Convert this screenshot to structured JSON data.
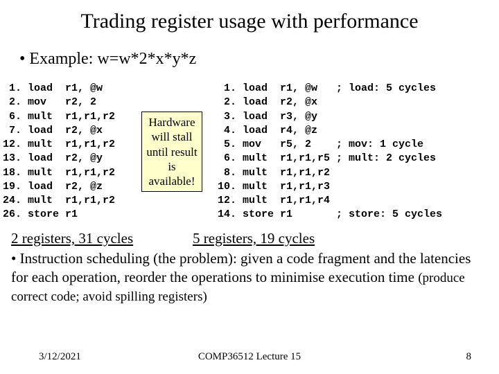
{
  "title": "Trading register usage with performance",
  "example": "• Example: w=w*2*x*y*z",
  "left_code": " 1. load  r1, @w\n 2. mov   r2, 2\n 6. mult  r1,r1,r2\n 7. load  r2, @x\n12. mult  r1,r1,r2\n13. load  r2, @y\n18. mult  r1,r1,r2\n19. load  r2, @z\n24. mult  r1,r1,r2\n26. store r1",
  "callout": "Hardware\nwill\nstall until\nresult\nis\navailable!",
  "right_code": " 1. load  r1, @w   ; load: 5 cycles\n 2. load  r2, @x\n 3. load  r3, @y\n 4. load  r4, @z\n 5. mov   r5, 2    ; mov: 1 cycle\n 6. mult  r1,r1,r5 ; mult: 2 cycles\n 8. mult  r1,r1,r2\n10. mult  r1,r1,r3\n12. mult  r1,r1,r4\n14. store r1       ; store: 5 cycles",
  "summary_left": "2 registers, 31 cycles",
  "summary_right": "5 registers, 19 cycles",
  "bullet_text": "Instruction scheduling (the problem): given a code fragment and the latencies for each operation, reorder the operations to minimise execution time ",
  "bullet_sub": "(produce correct code; avoid spilling registers)",
  "footer_date": "3/12/2021",
  "footer_center": "COMP36512 Lecture 15",
  "footer_page": "8",
  "colors": {
    "background": "#ffffff",
    "text": "#000000",
    "callout_bg": "#ffffcc",
    "callout_border": "#000000"
  }
}
